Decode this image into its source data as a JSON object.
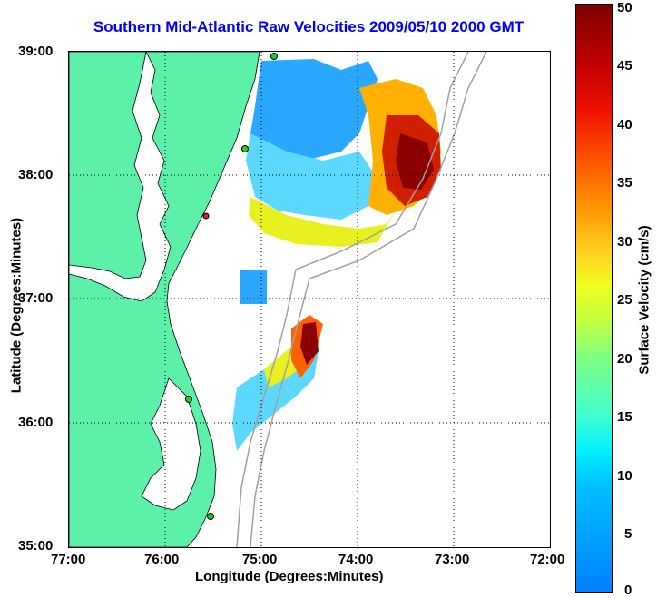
{
  "title": "Southern Mid-Atlantic Raw Velocities 2009/05/10 2000 GMT",
  "xlabel": "Longitude (Degrees:Minutes)",
  "ylabel": "Latitude (Degrees:Minutes)",
  "xticks": [
    "77:00",
    "76:00",
    "75:00",
    "74:00",
    "73:00",
    "72:00"
  ],
  "yticks": [
    "39:00",
    "38:00",
    "37:00",
    "36:00",
    "35:00"
  ],
  "colorbar": {
    "label": "Surface Velocity (cm/s)",
    "ticks": [
      "50",
      "45",
      "40",
      "35",
      "30",
      "25",
      "20",
      "15",
      "10",
      "5",
      "0"
    ]
  },
  "colors": {
    "land": "#5cf0a8",
    "title": "#0000ff",
    "grid": "#000000",
    "bathymetry": "#a0a0a0"
  }
}
